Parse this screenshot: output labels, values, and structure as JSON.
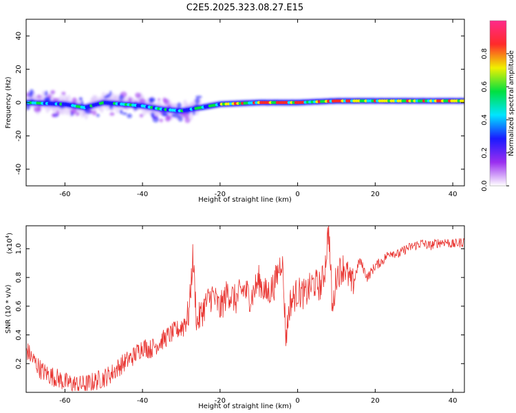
{
  "title": "C2E5.2025.323.08.27.E15",
  "chart_data": [
    {
      "type": "heatmap",
      "xlabel": "Height of straight line (km)",
      "ylabel": "Frequency (Hz)",
      "xlim": [
        -70,
        43
      ],
      "ylim": [
        -50,
        50
      ],
      "x_ticks": [
        -60,
        -40,
        -20,
        0,
        20,
        40
      ],
      "y_ticks": [
        -40,
        -20,
        0,
        20,
        40
      ],
      "ridge": {
        "description_x": [
          -70,
          -60,
          -55,
          -50,
          -40,
          -35,
          -30,
          -25,
          -20,
          -10,
          0,
          10,
          20,
          30,
          43
        ],
        "frequency_hz": [
          0,
          -1,
          -3,
          0,
          -2,
          -4,
          -5,
          -3,
          -1,
          0,
          0,
          1,
          1,
          1,
          1
        ]
      },
      "colorbar": {
        "label": "Normalized spectral amplitude",
        "range": [
          0,
          1
        ],
        "ticks": [
          "0.0",
          "0.2",
          "0.4",
          "0.6",
          "0.8"
        ],
        "colors": [
          "#ffffff",
          "#9a2ef0",
          "#1a1aff",
          "#00e5ff",
          "#00e040",
          "#f0f000",
          "#ff2a2a",
          "#ff2a8a"
        ]
      }
    },
    {
      "type": "line",
      "xlabel": "Height of straight line (km)",
      "ylabel": "SNR (10 * v/v)",
      "scale_label": "(x10",
      "scale_exp": "4",
      "scale_close": ")",
      "xlim": [
        -70,
        43
      ],
      "ylim": [
        0,
        1.16
      ],
      "x_ticks": [
        -60,
        -40,
        -20,
        0,
        20,
        40
      ],
      "y_ticks": [
        0.2,
        0.4,
        0.6,
        0.8,
        1.0
      ],
      "y_tick_labels": [
        "0.2",
        "0.4",
        "0.6",
        "0.8",
        "1.0"
      ],
      "color": "#e8302c",
      "series": {
        "x": [
          -70,
          -68,
          -66,
          -64,
          -62,
          -60,
          -58,
          -56,
          -54,
          -52,
          -50,
          -48,
          -46,
          -44,
          -42,
          -40,
          -38,
          -36,
          -34,
          -32,
          -30,
          -28,
          -27,
          -26,
          -24,
          -22,
          -20,
          -18,
          -16,
          -14,
          -12,
          -10,
          -8,
          -6,
          -4,
          -3,
          -2,
          0,
          2,
          4,
          6,
          7,
          8,
          9,
          10,
          12,
          14,
          16,
          18,
          20,
          22,
          24,
          26,
          28,
          30,
          32,
          34,
          36,
          38,
          40,
          43
        ],
        "y": [
          0.3,
          0.22,
          0.15,
          0.12,
          0.1,
          0.07,
          0.06,
          0.05,
          0.06,
          0.08,
          0.1,
          0.13,
          0.18,
          0.22,
          0.26,
          0.32,
          0.3,
          0.34,
          0.38,
          0.42,
          0.45,
          0.55,
          0.95,
          0.48,
          0.6,
          0.68,
          0.58,
          0.7,
          0.64,
          0.72,
          0.66,
          0.78,
          0.68,
          0.75,
          0.94,
          0.38,
          0.62,
          0.7,
          0.68,
          0.76,
          0.74,
          0.85,
          1.15,
          0.55,
          0.82,
          0.88,
          0.74,
          0.92,
          0.8,
          0.88,
          0.92,
          0.98,
          0.96,
          1.0,
          1.02,
          1.04,
          1.02,
          1.04,
          1.05,
          1.03,
          1.05
        ]
      }
    }
  ]
}
